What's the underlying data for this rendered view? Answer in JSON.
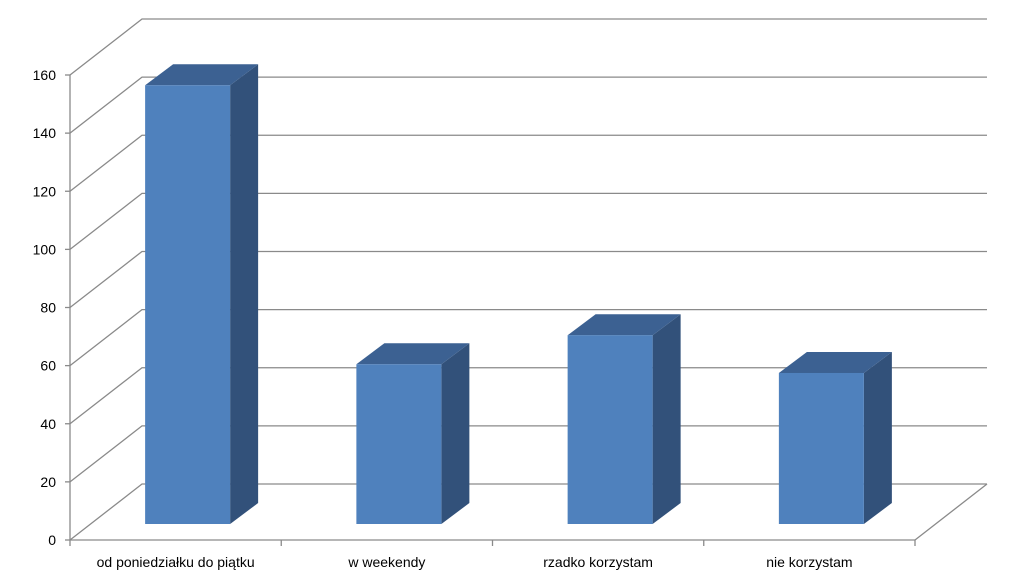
{
  "chart_data": {
    "type": "bar",
    "variant": "3d-column",
    "categories": [
      "od poniedziałku do piątku",
      "w weekendy",
      "rzadko korzystam",
      "nie korzystam"
    ],
    "values": [
      152,
      56,
      66,
      53
    ],
    "title": "",
    "xlabel": "",
    "ylabel": "",
    "ylim": [
      0,
      160
    ],
    "yticks": [
      "0",
      "20",
      "40",
      "60",
      "80",
      "100",
      "120",
      "140",
      "160"
    ],
    "grid": true,
    "legend": "none",
    "colors": {
      "bar_front": "#4f81bd",
      "bar_side": "#32517a",
      "bar_top": "#3c6192",
      "grid": "#8a8a8a"
    }
  }
}
